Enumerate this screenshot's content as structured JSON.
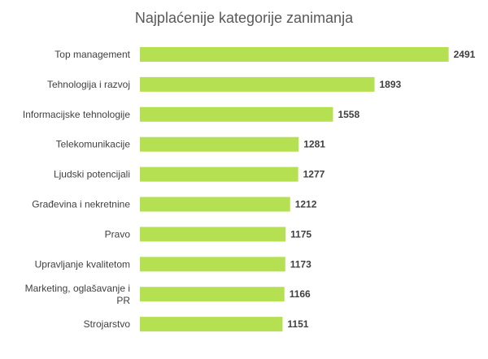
{
  "chart_data": {
    "type": "bar",
    "orientation": "horizontal",
    "title": "Najplaćenije kategorije zanimanja",
    "xlabel": "",
    "ylabel": "",
    "grid": false,
    "legend": "none",
    "categories": [
      "Top management",
      "Tehnologija i razvoj",
      "Informacijske tehnologije",
      "Telekomunikacije",
      "Ljudski potencijali",
      "Građevina i nekretnine",
      "Pravo",
      "Upravljanje kvalitetom",
      "Marketing, oglašavanje i PR",
      "Strojarstvo"
    ],
    "values": [
      2491,
      1893,
      1558,
      1281,
      1277,
      1212,
      1175,
      1173,
      1166,
      1151
    ],
    "xlim": [
      0,
      2500
    ],
    "bar_color": "#b5e051",
    "label_color": "#404040"
  }
}
